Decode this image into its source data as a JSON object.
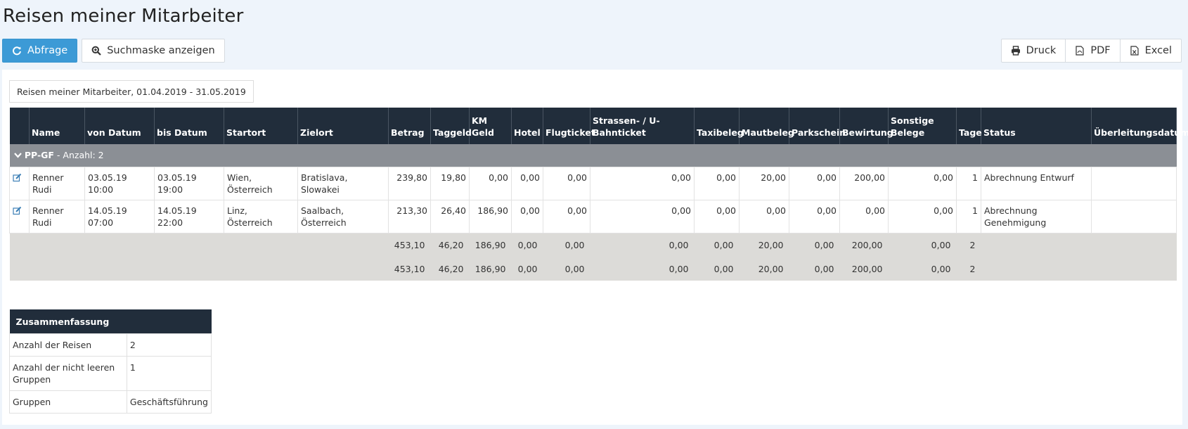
{
  "page": {
    "title": "Reisen meiner Mitarbeiter"
  },
  "toolbar": {
    "query_label": "Abfrage",
    "search_mask_label": "Suchmaske anzeigen",
    "print_label": "Druck",
    "pdf_label": "PDF",
    "excel_label": "Excel"
  },
  "report": {
    "caption": "Reisen meiner Mitarbeiter, 01.04.2019 - 31.05.2019"
  },
  "table": {
    "headers": {
      "name": "Name",
      "from": "von Datum",
      "to": "bis Datum",
      "start": "Startort",
      "dest": "Zielort",
      "amount": "Betrag",
      "daily": "Taggeld",
      "km": "KM Geld",
      "hotel": "Hotel",
      "flight": "Flugticket",
      "ticket": "Strassen- / U-Bahnticket",
      "taxi": "Taxibeleg",
      "toll": "Mautbeleg",
      "parking": "Parkschein",
      "catering": "Bewirtung",
      "other": "Sonstige Belege",
      "days": "Tage",
      "status": "Status",
      "transfer": "Überleitungsdatum"
    },
    "group": {
      "name": "PP-GF",
      "count": " - Anzahl: 2"
    },
    "rows": [
      {
        "name": "Renner Rudi",
        "from": "03.05.19 10:00",
        "to": "03.05.19 19:00",
        "start": "Wien, Österreich",
        "dest": "Bratislava, Slowakei",
        "amount": "239,80",
        "daily": "19,80",
        "km": "0,00",
        "hotel": "0,00",
        "flight": "0,00",
        "ticket": "0,00",
        "taxi": "0,00",
        "toll": "20,00",
        "parking": "0,00",
        "catering": "200,00",
        "other": "0,00",
        "days": "1",
        "status": "Abrechnung Entwurf",
        "transfer": ""
      },
      {
        "name": "Renner Rudi",
        "from": "14.05.19 07:00",
        "to": "14.05.19 22:00",
        "start": "Linz, Österreich",
        "dest": "Saalbach, Österreich",
        "amount": "213,30",
        "daily": "26,40",
        "km": "186,90",
        "hotel": "0,00",
        "flight": "0,00",
        "ticket": "0,00",
        "taxi": "0,00",
        "toll": "0,00",
        "parking": "0,00",
        "catering": "0,00",
        "other": "0,00",
        "days": "1",
        "status": "Abrechnung Genehmigung",
        "transfer": ""
      }
    ],
    "totals": [
      {
        "amount": "453,10",
        "daily": "46,20",
        "km": "186,90",
        "hotel": "0,00",
        "flight": "0,00",
        "ticket": "0,00",
        "taxi": "0,00",
        "toll": "20,00",
        "parking": "0,00",
        "catering": "200,00",
        "other": "0,00",
        "days": "2"
      },
      {
        "amount": "453,10",
        "daily": "46,20",
        "km": "186,90",
        "hotel": "0,00",
        "flight": "0,00",
        "ticket": "0,00",
        "taxi": "0,00",
        "toll": "20,00",
        "parking": "0,00",
        "catering": "200,00",
        "other": "0,00",
        "days": "2"
      }
    ]
  },
  "summary": {
    "title": "Zusammenfassung",
    "rows": [
      {
        "label": "Anzahl der Reisen",
        "value": "2"
      },
      {
        "label": "Anzahl der nicht leeren Gruppen",
        "value": "1"
      },
      {
        "label": "Gruppen",
        "value": "Geschäftsführung"
      }
    ]
  },
  "colors": {
    "primary_button": "#3c9ad6",
    "table_header": "#212d3b",
    "group_row": "#8b8f95",
    "totals_row": "#dcdbd8",
    "background": "#eef4fb"
  },
  "icons": {
    "query": "refresh-icon",
    "search_mask": "zoom-icon",
    "print": "printer-icon",
    "pdf": "pdf-file-icon",
    "excel": "excel-file-icon",
    "edit": "edit-icon",
    "group_toggle": "chevron-down-icon"
  }
}
